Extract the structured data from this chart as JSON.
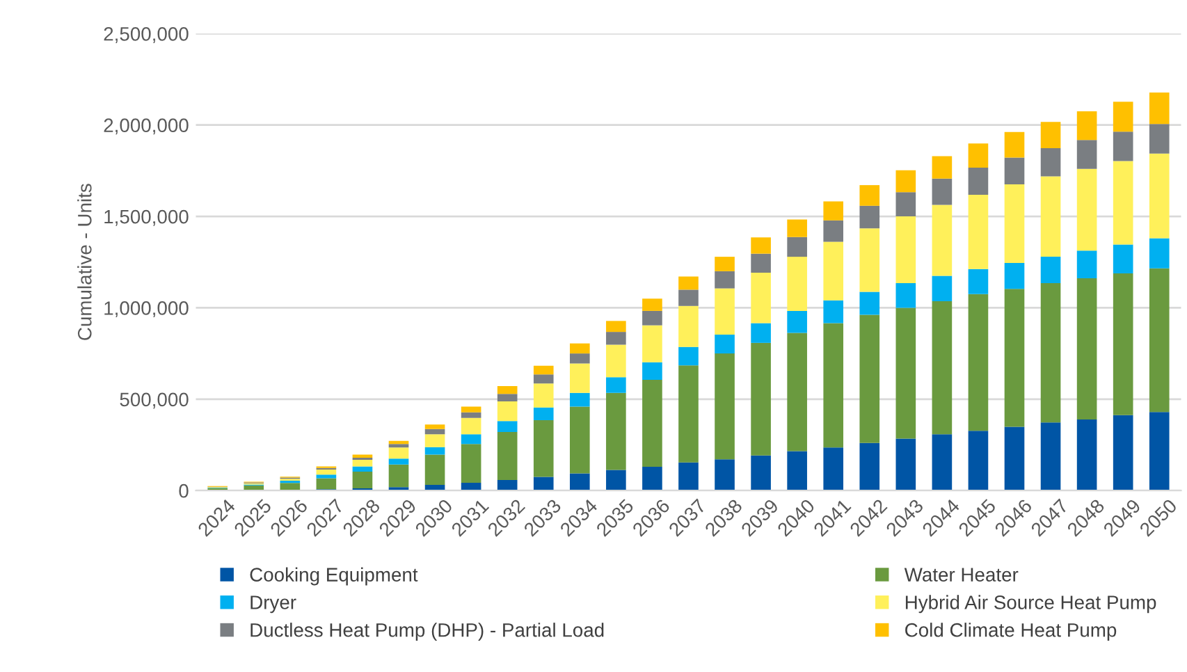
{
  "chart_data": {
    "type": "bar",
    "stacked": true,
    "ylabel": "Cumulative - Units",
    "categories": [
      "2024",
      "2025",
      "2026",
      "2027",
      "2028",
      "2029",
      "2030",
      "2031",
      "2032",
      "2033",
      "2034",
      "2035",
      "2036",
      "2037",
      "2038",
      "2039",
      "2040",
      "2041",
      "2042",
      "2043",
      "2044",
      "2045",
      "2046",
      "2047",
      "2048",
      "2049",
      "2050"
    ],
    "series": [
      {
        "name": "Cooking Equipment",
        "color": "#0055a5",
        "values": [
          2000,
          4000,
          null,
          7000,
          12000,
          19000,
          31000,
          43000,
          58000,
          75000,
          94000,
          113000,
          130000,
          154000,
          171000,
          192000,
          216000,
          236000,
          260000,
          284000,
          308000,
          327000,
          349000,
          373000,
          389000,
          413000,
          430000
        ]
      },
      {
        "name": "Water Heater",
        "color": "#6a9a3f",
        "values": [
          10000,
          24000,
          42000,
          60000,
          91000,
          123000,
          166000,
          212000,
          262000,
          310000,
          365000,
          421000,
          476000,
          531000,
          579000,
          616000,
          647000,
          680000,
          702000,
          716000,
          728000,
          748000,
          754000,
          762000,
          772000,
          775000,
          786000
        ]
      },
      {
        "name": "Dryer",
        "color": "#00b0f0",
        "values": [
          3000,
          5000,
          12000,
          20000,
          29000,
          33000,
          41000,
          53000,
          60000,
          70000,
          75000,
          86000,
          96000,
          101000,
          103000,
          108000,
          120000,
          125000,
          125000,
          135000,
          139000,
          137000,
          142000,
          144000,
          152000,
          158000,
          164000
        ]
      },
      {
        "name": "Hybrid Air Source Heat Pump",
        "color": "#fff05a",
        "values": [
          4000,
          7000,
          10000,
          28000,
          36000,
          61000,
          70000,
          89000,
          108000,
          131000,
          161000,
          178000,
          202000,
          224000,
          253000,
          276000,
          296000,
          320000,
          348000,
          365000,
          388000,
          406000,
          430000,
          440000,
          447000,
          457000,
          464000
        ]
      },
      {
        "name": "Ductless Heat Pump (DHP) - Partial Load",
        "color": "#7a7e82",
        "values": [
          2000,
          4000,
          7000,
          8000,
          12000,
          19000,
          29000,
          31000,
          41000,
          49000,
          55000,
          70000,
          79000,
          89000,
          94000,
          104000,
          108000,
          117000,
          123000,
          132000,
          144000,
          149000,
          147000,
          154000,
          158000,
          161000,
          161000
        ]
      },
      {
        "name": "Cold Climate Heat Pump",
        "color": "#ffc000",
        "values": [
          3000,
          4000,
          5000,
          9000,
          17000,
          17000,
          24000,
          31000,
          43000,
          48000,
          55000,
          60000,
          67000,
          72000,
          79000,
          89000,
          96000,
          104000,
          113000,
          120000,
          122000,
          132000,
          140000,
          144000,
          157000,
          163000,
          173000
        ]
      }
    ],
    "ylim": [
      0,
      2500000
    ],
    "yticks": [
      {
        "value": 0,
        "label": "0"
      },
      {
        "value": 500000,
        "label": "500,000"
      },
      {
        "value": 1000000,
        "label": "1,000,000"
      },
      {
        "value": 1500000,
        "label": "1,500,000"
      },
      {
        "value": 2000000,
        "label": "2,000,000"
      },
      {
        "value": 2500000,
        "label": "2,500,000"
      }
    ],
    "grid": "y",
    "legend": "bottom"
  }
}
